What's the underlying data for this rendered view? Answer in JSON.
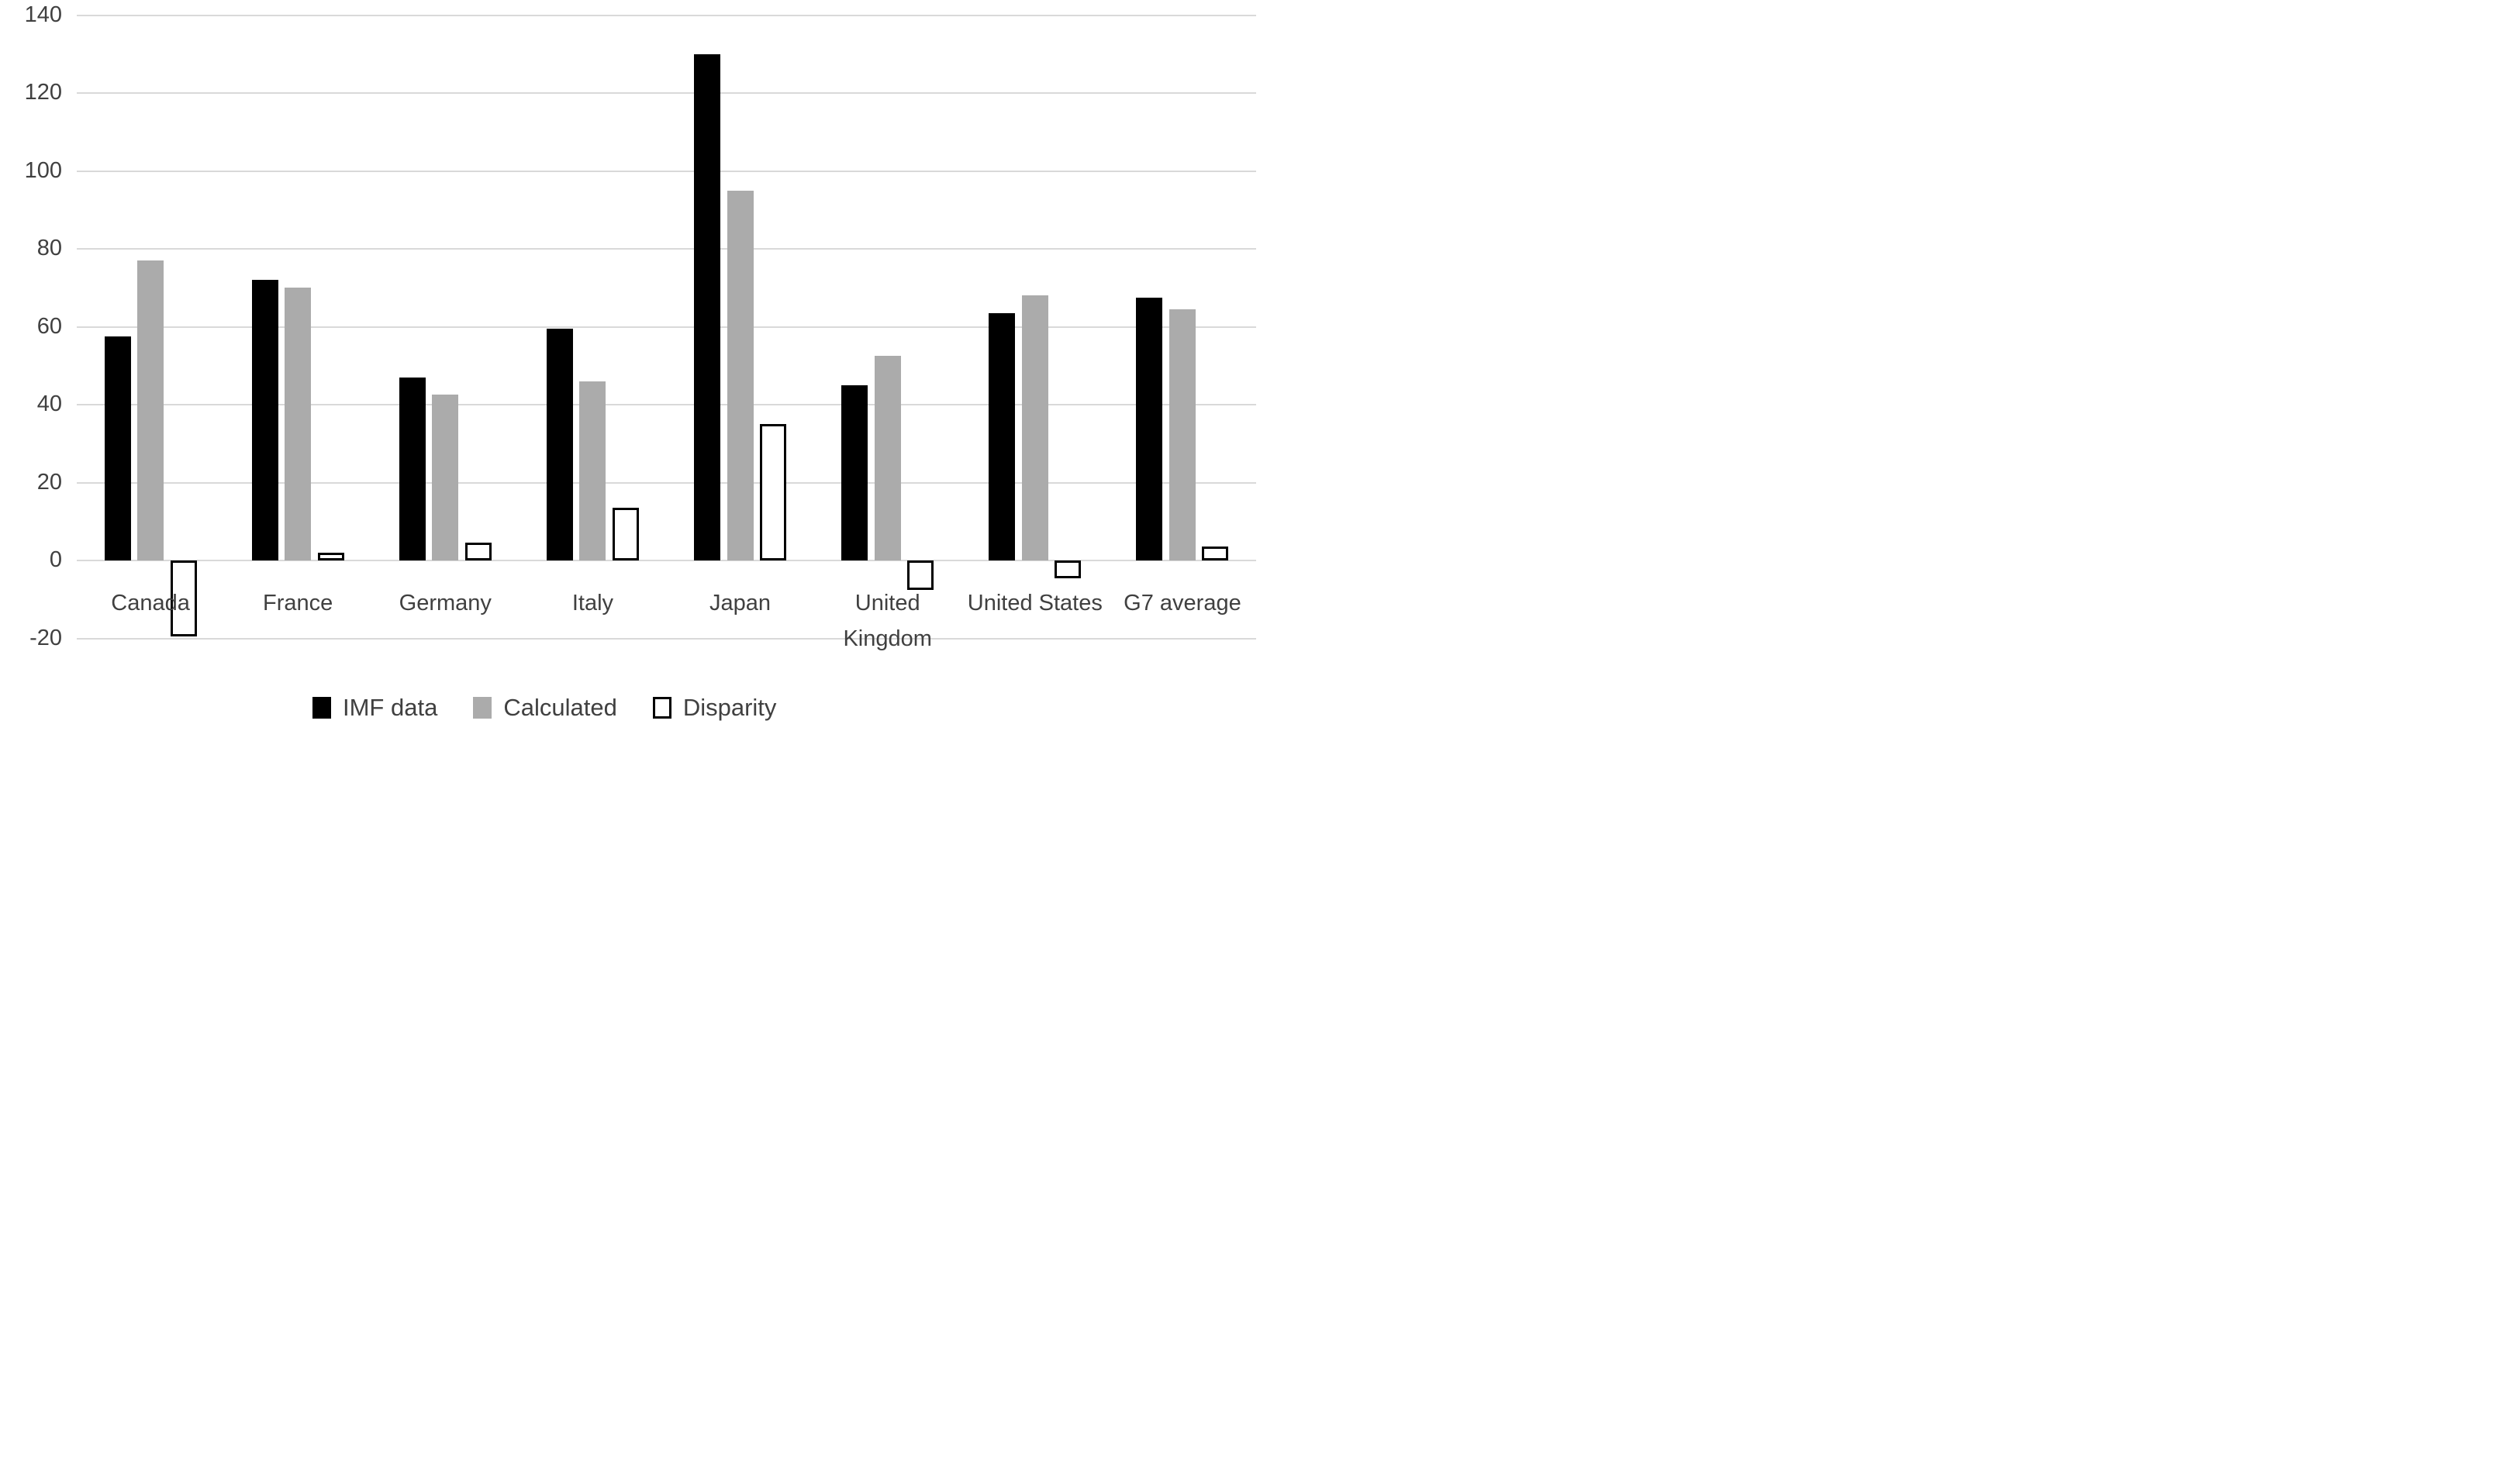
{
  "chart_data": {
    "type": "bar",
    "title": "",
    "xlabel": "",
    "ylabel": "",
    "categories": [
      "Canada",
      "France",
      "Germany",
      "Italy",
      "Japan",
      "United Kingdom",
      "United States",
      "G7 average"
    ],
    "series": [
      {
        "name": "IMF data",
        "color": "#000000",
        "outline": false,
        "values": [
          57.5,
          72,
          47,
          59.5,
          130,
          45,
          63.5,
          67.5
        ]
      },
      {
        "name": "Calculated",
        "color": "#ababab",
        "outline": false,
        "values": [
          77,
          70,
          42.5,
          46,
          95,
          52.5,
          68,
          64.5
        ]
      },
      {
        "name": "Disparity",
        "color": "#ffffff",
        "outline": true,
        "border_color": "#000000",
        "values": [
          -19.5,
          2,
          4.5,
          13.5,
          35,
          -7.5,
          -4.5,
          3.5
        ]
      }
    ],
    "ylim": [
      -20,
      140
    ],
    "ytick_step": 20,
    "yticks": [
      140,
      120,
      100,
      80,
      60,
      40,
      20,
      0,
      -20
    ],
    "grid": true,
    "gridline_color": "#d9d9d9",
    "text_color": "#404040",
    "legend_position": "bottom"
  }
}
